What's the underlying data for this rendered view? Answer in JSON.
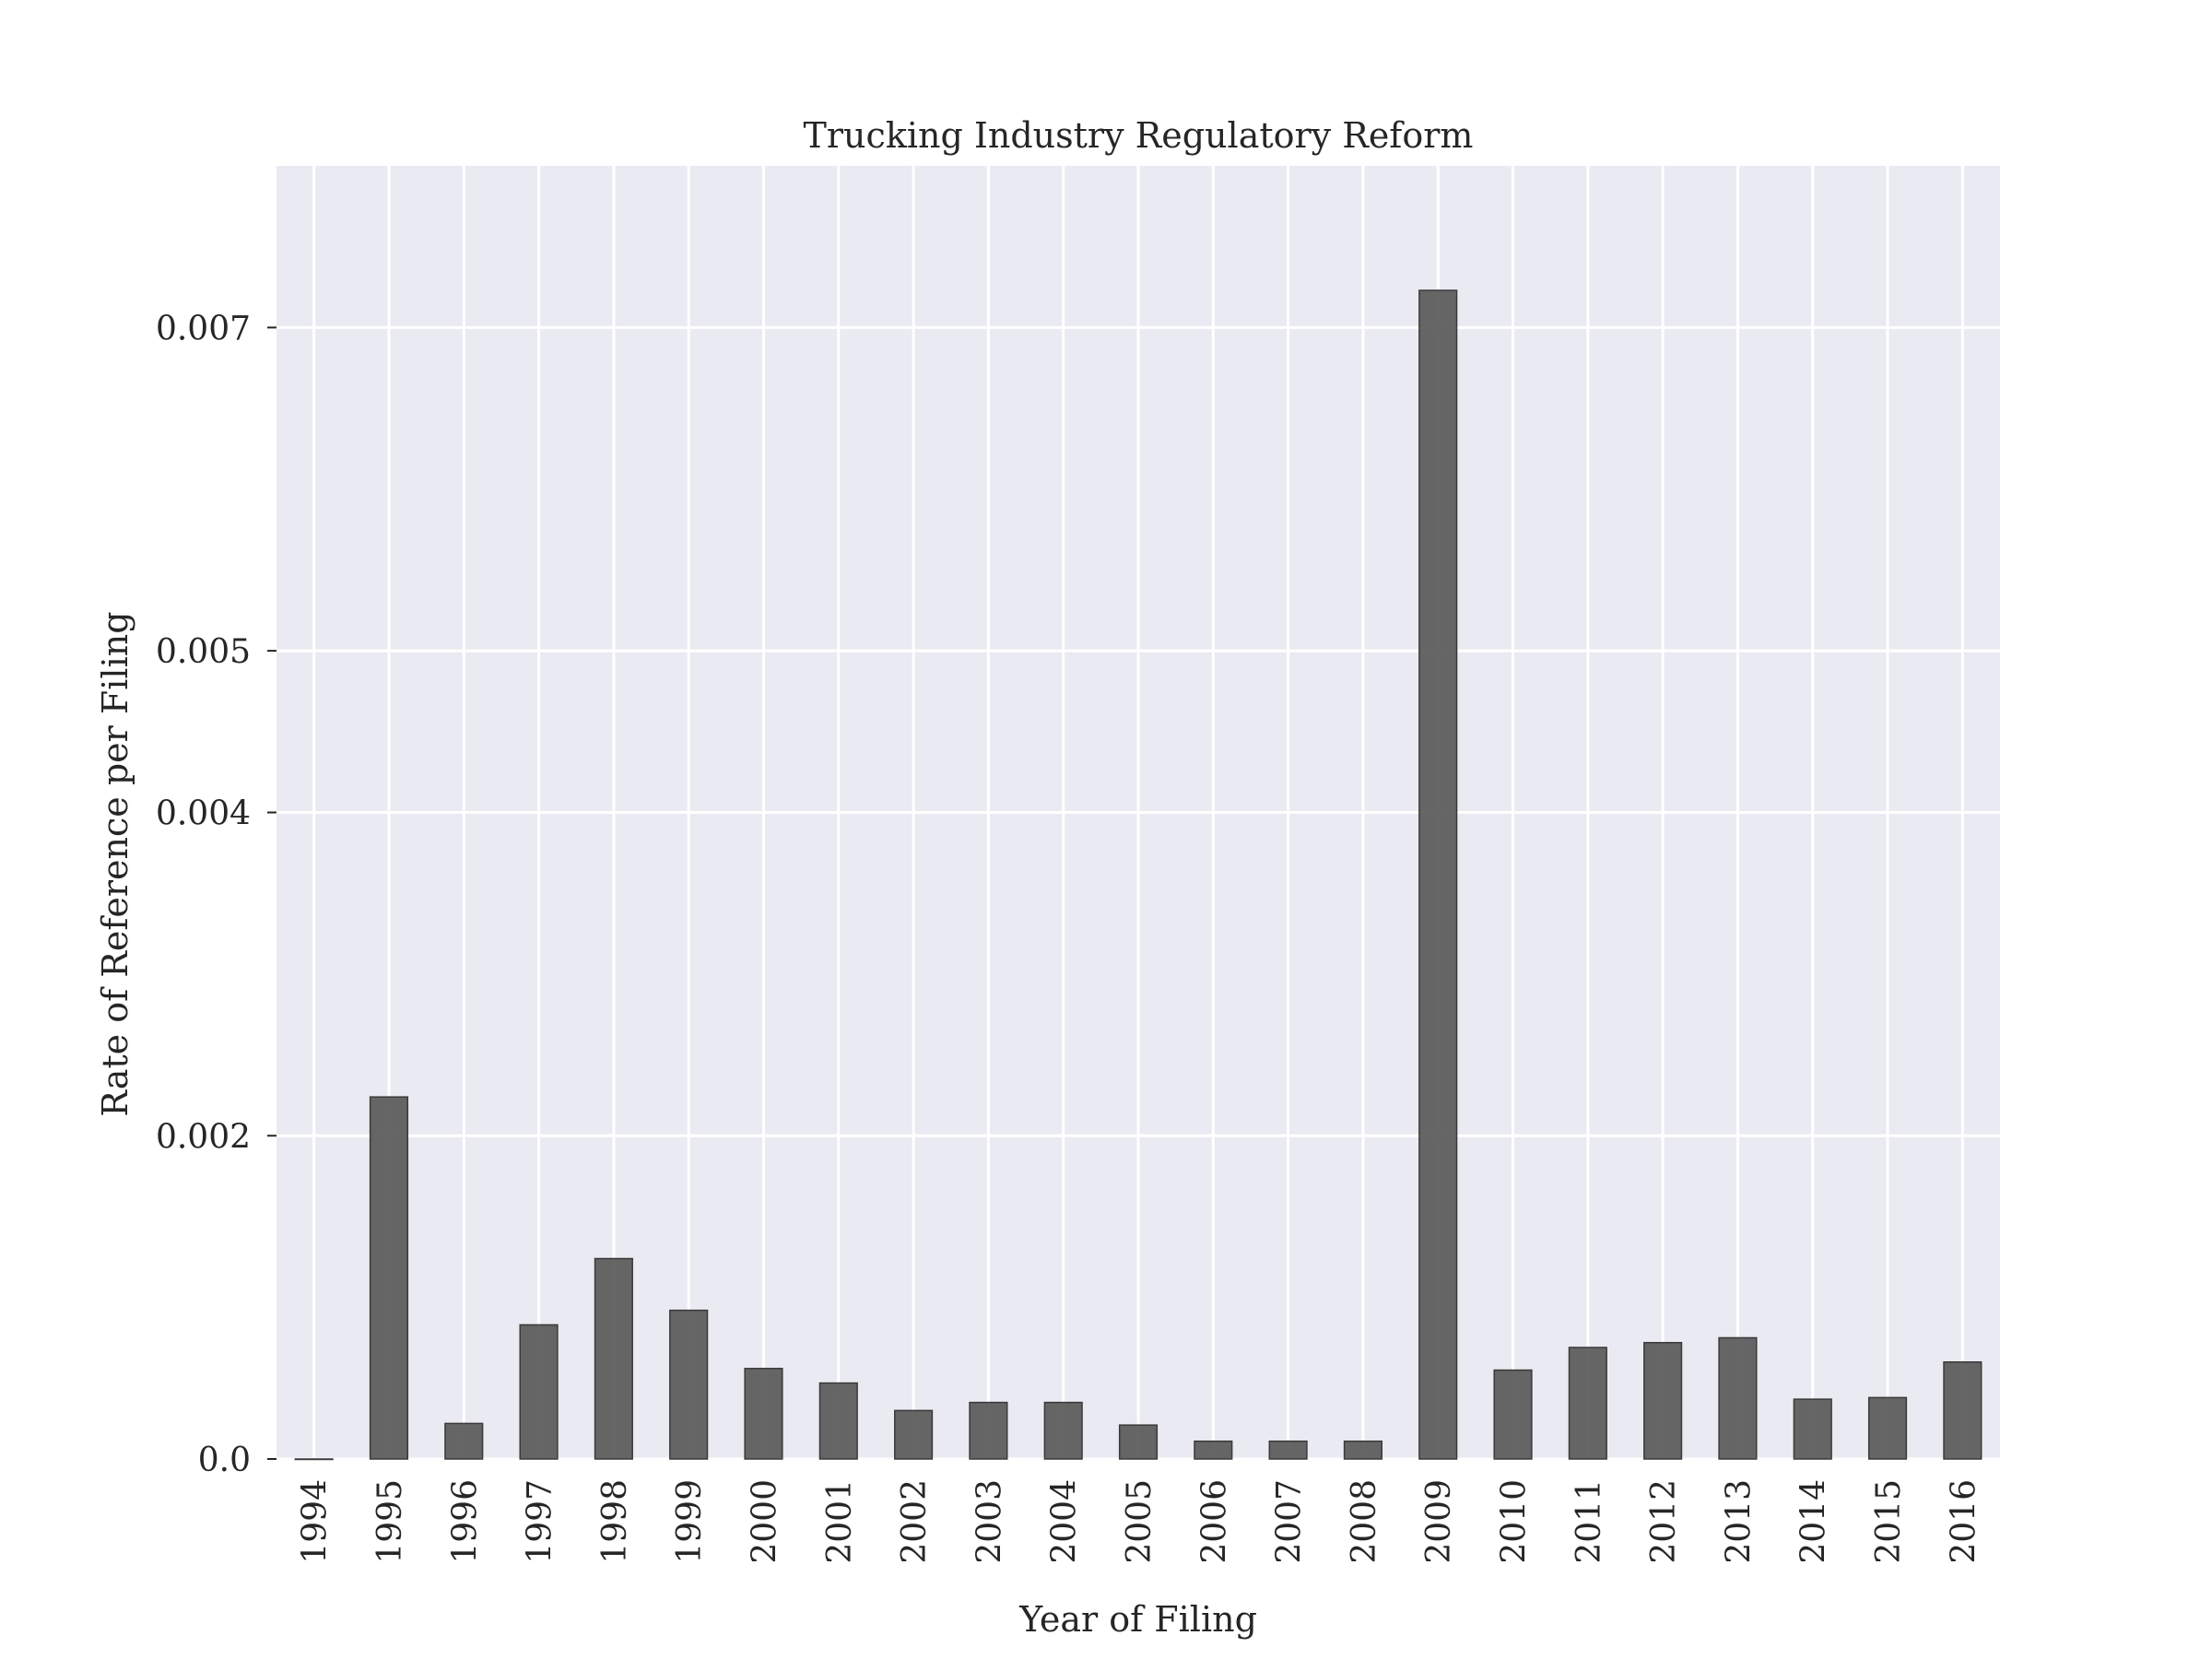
{
  "chart_data": {
    "type": "bar",
    "title": "Trucking Industry Regulatory Reform",
    "xlabel": "Year of Filing",
    "ylabel": "Rate of Reference per Filing",
    "categories": [
      "1994",
      "1995",
      "1996",
      "1997",
      "1998",
      "1999",
      "2000",
      "2001",
      "2002",
      "2003",
      "2004",
      "2005",
      "2006",
      "2007",
      "2008",
      "2009",
      "2010",
      "2011",
      "2012",
      "2013",
      "2014",
      "2015",
      "2016"
    ],
    "values": [
      0.0,
      0.00224,
      0.00022,
      0.00083,
      0.00124,
      0.00092,
      0.00056,
      0.00047,
      0.0003,
      0.00035,
      0.00035,
      0.00021,
      0.00011,
      0.00011,
      0.00011,
      0.00723,
      0.00055,
      0.00069,
      0.00072,
      0.00075,
      0.00037,
      0.00038,
      0.0006
    ],
    "ylim": [
      0,
      0.008
    ],
    "yticks": [
      0.0,
      0.002,
      0.004,
      0.005,
      0.007
    ],
    "ytick_labels": [
      "0.0",
      "0.002",
      "0.004",
      "0.005",
      "0.007"
    ],
    "grid": true,
    "colors": {
      "bar": "#595959",
      "plot_background": "#eaeaf2",
      "grid": "#ffffff"
    }
  }
}
